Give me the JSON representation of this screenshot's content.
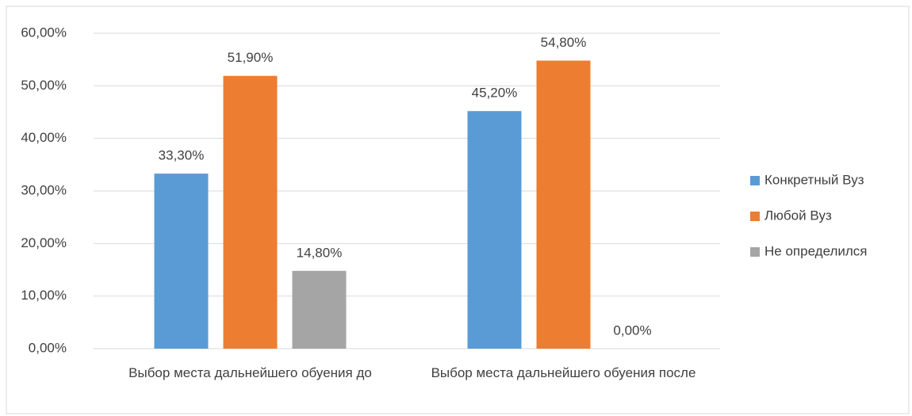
{
  "chart_data": {
    "type": "bar",
    "categories": [
      "Выбор места дальнейшего обуения до",
      "Выбор места дальнейшего обуения после"
    ],
    "series": [
      {
        "name": "Конкретный Вуз",
        "color": "#5b9bd5",
        "values": [
          33.3,
          45.2
        ],
        "value_labels": [
          "33,30%",
          "45,20%"
        ]
      },
      {
        "name": "Любой Вуз",
        "color": "#ed7d31",
        "values": [
          51.9,
          54.8
        ],
        "value_labels": [
          "51,90%",
          "54,80%"
        ]
      },
      {
        "name": "Не определился",
        "color": "#a5a5a5",
        "values": [
          14.8,
          0
        ],
        "value_labels": [
          "14,80%",
          "0,00%"
        ]
      }
    ],
    "ylim": [
      0,
      60
    ],
    "yticks": [
      {
        "value": 0,
        "label": "0,00%"
      },
      {
        "value": 10,
        "label": "10,00%"
      },
      {
        "value": 20,
        "label": "20,00%"
      },
      {
        "value": 30,
        "label": "30,00%"
      },
      {
        "value": 40,
        "label": "40,00%"
      },
      {
        "value": 50,
        "label": "50,00%"
      },
      {
        "value": 60,
        "label": "60,00%"
      }
    ],
    "grid": true,
    "legend": "right"
  }
}
